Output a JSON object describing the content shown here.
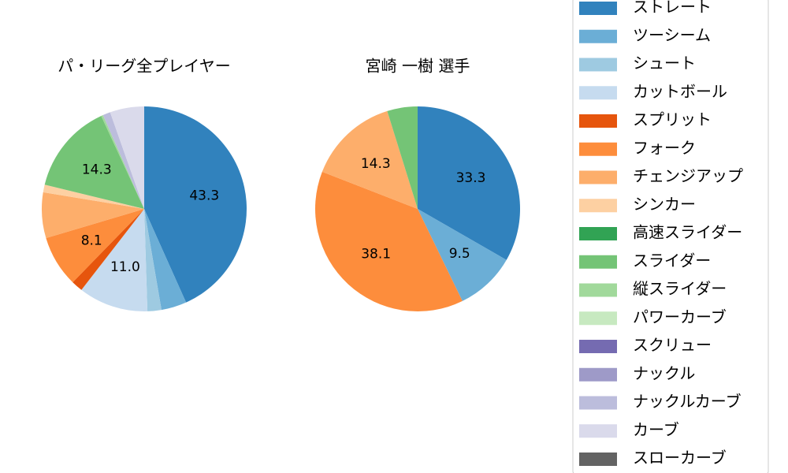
{
  "chart_data": [
    {
      "type": "pie",
      "title": "パ・リーグ全プレイヤー",
      "categories": [
        "ストレート",
        "ツーシーム",
        "シュート",
        "カットボール",
        "スプリット",
        "フォーク",
        "チェンジアップ",
        "シンカー",
        "高速スライダー",
        "スライダー",
        "縦スライダー",
        "パワーカーブ",
        "スクリュー",
        "ナックル",
        "ナックルカーブ",
        "カーブ",
        "スローカーブ"
      ],
      "colors": [
        "#3182bd",
        "#6baed6",
        "#9ecae1",
        "#c6dbef",
        "#e6550d",
        "#fd8d3c",
        "#fdae6b",
        "#fdd0a2",
        "#31a354",
        "#74c476",
        "#a1d99b",
        "#c7e9c0",
        "#756bb1",
        "#9e9ac8",
        "#bcbddc",
        "#dadaeb",
        "#636363"
      ],
      "values": [
        43.3,
        4.0,
        2.2,
        11.0,
        1.8,
        8.1,
        7.2,
        1.2,
        0,
        14.3,
        0.3,
        0,
        0,
        0,
        1.2,
        5.4,
        0
      ],
      "value_labels": [
        "43.3",
        null,
        null,
        "11.0",
        null,
        "8.1",
        null,
        null,
        null,
        "14.3",
        null,
        null,
        null,
        null,
        null,
        null,
        null
      ]
    },
    {
      "type": "pie",
      "title": "宮崎 一樹  選手",
      "values": [
        33.3,
        9.5,
        0,
        0,
        0,
        38.1,
        14.3,
        0,
        0,
        4.8,
        0,
        0,
        0,
        0,
        0,
        0,
        0
      ],
      "value_labels": [
        "33.3",
        "9.5",
        null,
        null,
        null,
        "38.1",
        "14.3",
        null,
        null,
        null,
        null,
        null,
        null,
        null,
        null,
        null,
        null
      ]
    }
  ]
}
